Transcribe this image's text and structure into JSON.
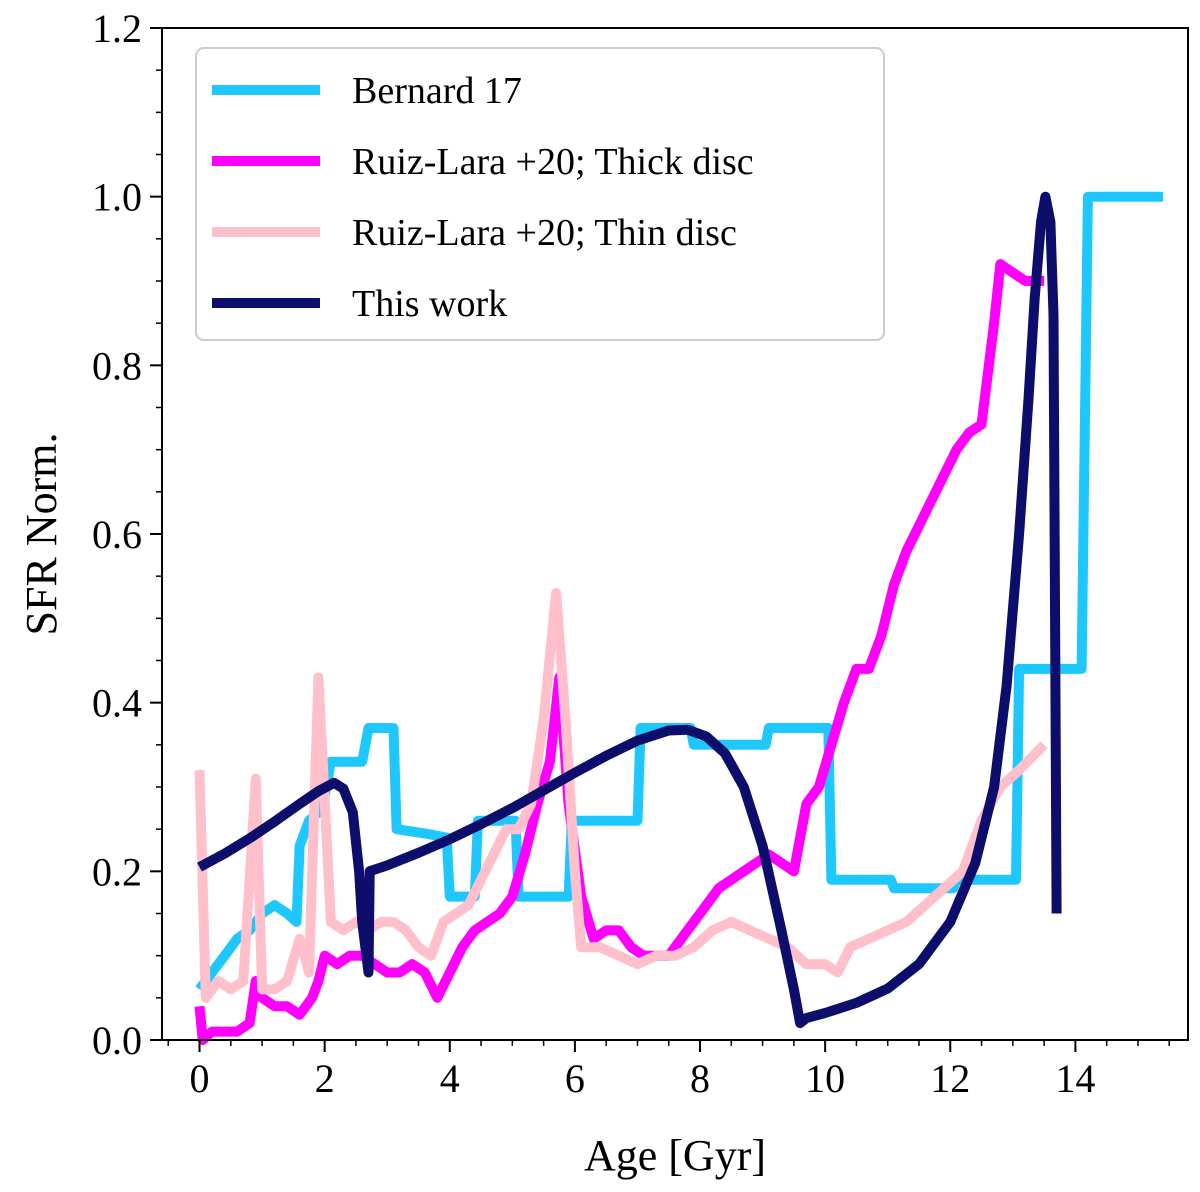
{
  "chart_data": {
    "type": "line",
    "title": "",
    "xlabel": "Age [Gyr]",
    "ylabel": "SFR Norm.",
    "xlim": [
      -0.6,
      15.8
    ],
    "ylim": [
      0.0,
      1.2
    ],
    "xticks": [
      0,
      2,
      4,
      6,
      8,
      10,
      12,
      14
    ],
    "xtick_labels": [
      "0",
      "2",
      "4",
      "6",
      "8",
      "10",
      "12",
      "14"
    ],
    "yticks": [
      0.0,
      0.2,
      0.4,
      0.6,
      0.8,
      1.0,
      1.2
    ],
    "ytick_labels": [
      "0.0",
      "0.2",
      "0.4",
      "0.6",
      "0.8",
      "1.0",
      "1.2"
    ],
    "grid": false,
    "legend_position": "top-left",
    "series": [
      {
        "name": "Bernard 17",
        "color": "#1ec8ff",
        "points": [
          [
            0,
            0.06
          ],
          [
            0.2,
            0.08
          ],
          [
            0.4,
            0.1
          ],
          [
            0.6,
            0.12
          ],
          [
            0.8,
            0.13
          ],
          [
            1.0,
            0.15
          ],
          [
            1.2,
            0.16
          ],
          [
            1.4,
            0.15
          ],
          [
            1.55,
            0.14
          ],
          [
            1.6,
            0.23
          ],
          [
            1.75,
            0.26
          ],
          [
            1.9,
            0.27
          ],
          [
            2.0,
            0.29
          ],
          [
            2.1,
            0.33
          ],
          [
            2.3,
            0.33
          ],
          [
            2.6,
            0.33
          ],
          [
            2.7,
            0.37
          ],
          [
            3.0,
            0.37
          ],
          [
            3.1,
            0.37
          ],
          [
            3.15,
            0.25
          ],
          [
            3.6,
            0.245
          ],
          [
            3.95,
            0.24
          ],
          [
            4.0,
            0.17
          ],
          [
            4.4,
            0.17
          ],
          [
            4.45,
            0.26
          ],
          [
            4.9,
            0.26
          ],
          [
            5.05,
            0.26
          ],
          [
            5.1,
            0.17
          ],
          [
            5.5,
            0.17
          ],
          [
            5.9,
            0.17
          ],
          [
            5.95,
            0.26
          ],
          [
            6.5,
            0.26
          ],
          [
            7.0,
            0.26
          ],
          [
            7.05,
            0.37
          ],
          [
            7.6,
            0.37
          ],
          [
            7.85,
            0.37
          ],
          [
            7.9,
            0.35
          ],
          [
            8.5,
            0.35
          ],
          [
            9.05,
            0.35
          ],
          [
            9.1,
            0.37
          ],
          [
            9.6,
            0.37
          ],
          [
            10.05,
            0.37
          ],
          [
            10.1,
            0.19
          ],
          [
            10.6,
            0.19
          ],
          [
            11.05,
            0.19
          ],
          [
            11.1,
            0.18
          ],
          [
            11.6,
            0.18
          ],
          [
            12.05,
            0.18
          ],
          [
            12.1,
            0.19
          ],
          [
            12.6,
            0.19
          ],
          [
            13.05,
            0.19
          ],
          [
            13.1,
            0.44
          ],
          [
            13.4,
            0.44
          ],
          [
            14.1,
            0.44
          ],
          [
            14.2,
            1.0
          ],
          [
            15.4,
            1.0
          ]
        ]
      },
      {
        "name": "Ruiz-Lara +20; Thick disc",
        "color": "#ff00ff",
        "points": [
          [
            0.0,
            0.04
          ],
          [
            0.05,
            0.0
          ],
          [
            0.2,
            0.01
          ],
          [
            0.4,
            0.01
          ],
          [
            0.6,
            0.01
          ],
          [
            0.8,
            0.02
          ],
          [
            0.9,
            0.07
          ],
          [
            1.0,
            0.05
          ],
          [
            1.2,
            0.04
          ],
          [
            1.4,
            0.04
          ],
          [
            1.6,
            0.03
          ],
          [
            1.8,
            0.05
          ],
          [
            1.9,
            0.07
          ],
          [
            2.0,
            0.1
          ],
          [
            2.2,
            0.09
          ],
          [
            2.4,
            0.1
          ],
          [
            2.6,
            0.1
          ],
          [
            2.8,
            0.09
          ],
          [
            3.0,
            0.08
          ],
          [
            3.2,
            0.08
          ],
          [
            3.4,
            0.09
          ],
          [
            3.6,
            0.08
          ],
          [
            3.8,
            0.05
          ],
          [
            4.0,
            0.08
          ],
          [
            4.2,
            0.11
          ],
          [
            4.4,
            0.13
          ],
          [
            4.6,
            0.14
          ],
          [
            4.8,
            0.15
          ],
          [
            5.0,
            0.17
          ],
          [
            5.2,
            0.22
          ],
          [
            5.4,
            0.28
          ],
          [
            5.6,
            0.33
          ],
          [
            5.75,
            0.43
          ],
          [
            5.9,
            0.28
          ],
          [
            6.1,
            0.17
          ],
          [
            6.3,
            0.12
          ],
          [
            6.5,
            0.13
          ],
          [
            6.7,
            0.13
          ],
          [
            6.9,
            0.11
          ],
          [
            7.1,
            0.1
          ],
          [
            7.3,
            0.1
          ],
          [
            7.5,
            0.1
          ],
          [
            7.7,
            0.12
          ],
          [
            7.9,
            0.14
          ],
          [
            8.1,
            0.16
          ],
          [
            8.3,
            0.18
          ],
          [
            8.5,
            0.19
          ],
          [
            8.7,
            0.2
          ],
          [
            8.9,
            0.21
          ],
          [
            9.1,
            0.22
          ],
          [
            9.3,
            0.21
          ],
          [
            9.5,
            0.2
          ],
          [
            9.7,
            0.28
          ],
          [
            9.9,
            0.3
          ],
          [
            10.1,
            0.35
          ],
          [
            10.3,
            0.4
          ],
          [
            10.5,
            0.44
          ],
          [
            10.7,
            0.44
          ],
          [
            10.9,
            0.48
          ],
          [
            11.1,
            0.54
          ],
          [
            11.3,
            0.58
          ],
          [
            11.5,
            0.61
          ],
          [
            11.7,
            0.64
          ],
          [
            11.9,
            0.67
          ],
          [
            12.1,
            0.7
          ],
          [
            12.3,
            0.72
          ],
          [
            12.5,
            0.73
          ],
          [
            12.7,
            0.85
          ],
          [
            12.8,
            0.92
          ],
          [
            13.0,
            0.91
          ],
          [
            13.2,
            0.9
          ],
          [
            13.5,
            0.9
          ]
        ]
      },
      {
        "name": "Ruiz-Lara +20; Thin disc",
        "color": "#ffc0cb",
        "points": [
          [
            0.0,
            0.32
          ],
          [
            0.1,
            0.05
          ],
          [
            0.3,
            0.07
          ],
          [
            0.5,
            0.06
          ],
          [
            0.7,
            0.07
          ],
          [
            0.9,
            0.31
          ],
          [
            1.0,
            0.06
          ],
          [
            1.2,
            0.06
          ],
          [
            1.4,
            0.07
          ],
          [
            1.6,
            0.12
          ],
          [
            1.75,
            0.08
          ],
          [
            1.9,
            0.43
          ],
          [
            2.1,
            0.14
          ],
          [
            2.3,
            0.13
          ],
          [
            2.5,
            0.14
          ],
          [
            2.7,
            0.13
          ],
          [
            2.9,
            0.14
          ],
          [
            3.1,
            0.14
          ],
          [
            3.3,
            0.13
          ],
          [
            3.5,
            0.11
          ],
          [
            3.7,
            0.1
          ],
          [
            3.9,
            0.14
          ],
          [
            4.1,
            0.15
          ],
          [
            4.3,
            0.16
          ],
          [
            4.5,
            0.19
          ],
          [
            4.7,
            0.22
          ],
          [
            4.9,
            0.25
          ],
          [
            5.1,
            0.25
          ],
          [
            5.3,
            0.28
          ],
          [
            5.5,
            0.38
          ],
          [
            5.7,
            0.53
          ],
          [
            5.85,
            0.38
          ],
          [
            6.0,
            0.2
          ],
          [
            6.1,
            0.11
          ],
          [
            6.4,
            0.11
          ],
          [
            6.7,
            0.1
          ],
          [
            7.0,
            0.09
          ],
          [
            7.3,
            0.1
          ],
          [
            7.6,
            0.1
          ],
          [
            7.9,
            0.11
          ],
          [
            8.2,
            0.13
          ],
          [
            8.5,
            0.14
          ],
          [
            8.8,
            0.13
          ],
          [
            9.1,
            0.12
          ],
          [
            9.4,
            0.11
          ],
          [
            9.7,
            0.09
          ],
          [
            10.0,
            0.09
          ],
          [
            10.2,
            0.08
          ],
          [
            10.4,
            0.11
          ],
          [
            10.7,
            0.12
          ],
          [
            11.0,
            0.13
          ],
          [
            11.3,
            0.14
          ],
          [
            11.6,
            0.16
          ],
          [
            11.9,
            0.18
          ],
          [
            12.2,
            0.2
          ],
          [
            12.5,
            0.26
          ],
          [
            12.8,
            0.3
          ],
          [
            13.1,
            0.32
          ],
          [
            13.5,
            0.35
          ]
        ]
      },
      {
        "name": "This work",
        "color": "#0d0d6b",
        "points": [
          [
            0.0,
            0.205
          ],
          [
            0.4,
            0.221
          ],
          [
            0.8,
            0.239
          ],
          [
            1.2,
            0.259
          ],
          [
            1.6,
            0.28
          ],
          [
            1.9,
            0.295
          ],
          [
            2.15,
            0.305
          ],
          [
            2.3,
            0.298
          ],
          [
            2.45,
            0.27
          ],
          [
            2.55,
            0.2
          ],
          [
            2.6,
            0.14
          ],
          [
            2.7,
            0.08
          ],
          [
            2.72,
            0.2
          ],
          [
            3.0,
            0.207
          ],
          [
            3.5,
            0.222
          ],
          [
            4.0,
            0.238
          ],
          [
            4.5,
            0.256
          ],
          [
            5.0,
            0.275
          ],
          [
            5.5,
            0.296
          ],
          [
            6.0,
            0.317
          ],
          [
            6.5,
            0.337
          ],
          [
            7.0,
            0.355
          ],
          [
            7.5,
            0.367
          ],
          [
            7.8,
            0.368
          ],
          [
            8.1,
            0.36
          ],
          [
            8.4,
            0.34
          ],
          [
            8.7,
            0.3
          ],
          [
            9.0,
            0.23
          ],
          [
            9.3,
            0.13
          ],
          [
            9.5,
            0.06
          ],
          [
            9.6,
            0.02
          ],
          [
            9.7,
            0.026
          ],
          [
            10.0,
            0.032
          ],
          [
            10.5,
            0.044
          ],
          [
            11.0,
            0.061
          ],
          [
            11.5,
            0.09
          ],
          [
            12.0,
            0.14
          ],
          [
            12.4,
            0.21
          ],
          [
            12.7,
            0.3
          ],
          [
            12.9,
            0.42
          ],
          [
            13.1,
            0.6
          ],
          [
            13.25,
            0.76
          ],
          [
            13.35,
            0.88
          ],
          [
            13.45,
            0.97
          ],
          [
            13.52,
            1.0
          ],
          [
            13.6,
            0.97
          ],
          [
            13.65,
            0.86
          ],
          [
            13.7,
            0.15
          ]
        ]
      }
    ]
  }
}
